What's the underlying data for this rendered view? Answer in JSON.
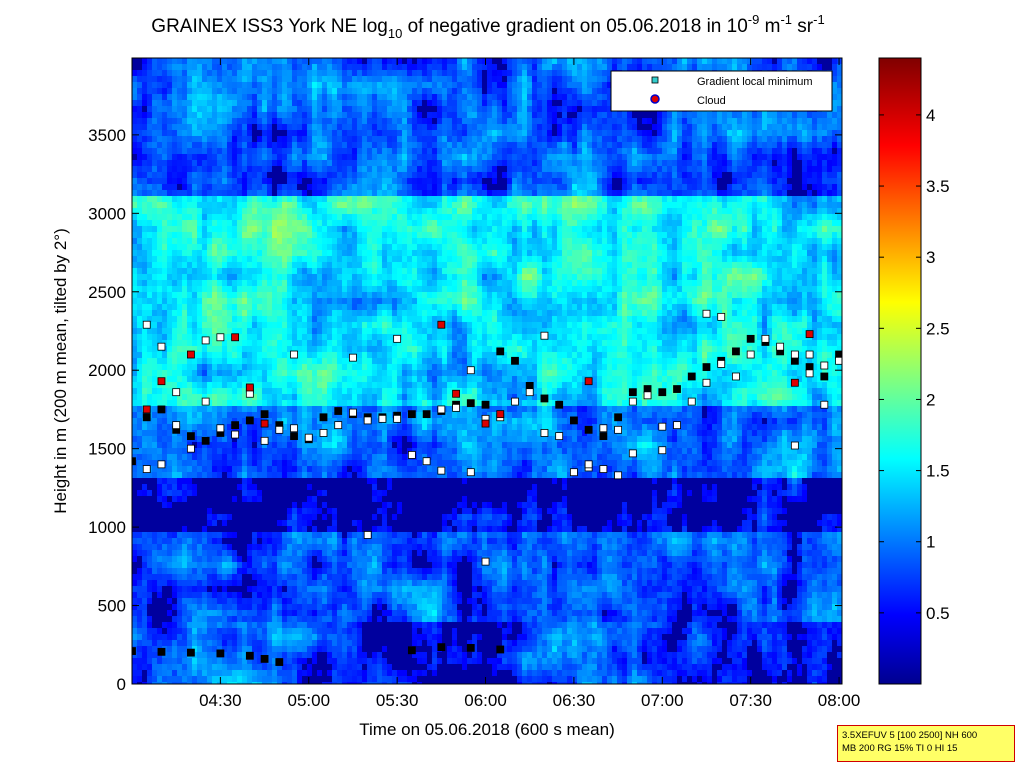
{
  "chart_data": {
    "type": "heatmap",
    "title": {
      "prefix": "GRAINEX ISS3 York NE log",
      "sub": "10",
      "middle": " of negative gradient on 05.06.2018 in 10",
      "sup1": "-9",
      "after_sup1": " m",
      "sup2": "-1",
      "after_sup2": " sr",
      "sup3": "-1"
    },
    "xlabel": "Time on 05.06.2018 (600 s mean)",
    "ylabel": "Height in m (200 m mean, tilted by 2°)",
    "x_range": [
      "04:00",
      "08:01"
    ],
    "ylim": [
      0,
      3990
    ],
    "x_ticks": [
      "04:30",
      "05:00",
      "05:30",
      "06:00",
      "06:30",
      "07:00",
      "07:30",
      "08:00"
    ],
    "y_ticks": [
      0,
      500,
      1000,
      1500,
      2000,
      2500,
      3000,
      3500
    ],
    "colorbar": {
      "range": [
        0,
        4.4
      ],
      "ticks": [
        0.5,
        1,
        1.5,
        2,
        2.5,
        3,
        3.5,
        4
      ],
      "colormap": "jet"
    },
    "legend": {
      "position": "top-right",
      "entries": [
        {
          "label": "Gradient local minimum",
          "color": "#33cccc",
          "marker": "square"
        },
        {
          "label": "Cloud",
          "color": "#dd0000",
          "marker": "circle",
          "edge": "#0000cc"
        }
      ]
    },
    "series": [
      {
        "marker": "square",
        "x": [
          "04:00",
          "04:05",
          "04:10",
          "04:15",
          "04:20",
          "04:25",
          "04:30",
          "04:35",
          "04:40",
          "04:45",
          "04:50",
          "04:55",
          "05:00",
          "05:05",
          "05:10",
          "05:15",
          "05:20",
          "05:25",
          "05:30",
          "05:35",
          "05:40",
          "05:45",
          "05:50",
          "05:55",
          "06:00",
          "06:05",
          "06:10",
          "06:15",
          "06:20",
          "06:25",
          "06:30",
          "06:35",
          "06:40",
          "06:45",
          "06:50",
          "06:55",
          "07:00",
          "07:05",
          "07:10",
          "07:15",
          "07:20",
          "07:25",
          "07:30",
          "07:35",
          "07:40",
          "07:45",
          "07:50",
          "07:55",
          "08:00"
        ],
        "y": [
          1420,
          1700,
          1750,
          1620,
          1580,
          1550,
          1600,
          1650,
          1680,
          1720,
          1650,
          1580,
          1560,
          1700,
          1740,
          1720,
          1700,
          1700,
          1710,
          1720,
          1720,
          1740,
          1780,
          1790,
          1780,
          2120,
          2060,
          1900,
          1820,
          1780,
          1680,
          1620,
          1580,
          1700,
          1860,
          1880,
          1860,
          1880,
          1960,
          2020,
          2060,
          2120,
          2200,
          2180,
          2120,
          2060,
          2020,
          1960,
          2100
        ]
      },
      {
        "marker": "square",
        "x": [
          "04:00",
          "04:10",
          "04:20",
          "04:30",
          "04:40",
          "04:45",
          "04:50",
          "05:35",
          "05:45",
          "05:55",
          "06:05"
        ],
        "y": [
          210,
          205,
          200,
          195,
          180,
          160,
          140,
          215,
          235,
          230,
          220
        ]
      },
      {
        "marker": "square",
        "x": [
          "04:05",
          "04:10",
          "04:15",
          "04:25",
          "04:30",
          "04:40",
          "04:55",
          "05:15",
          "05:20",
          "05:30",
          "05:45",
          "05:55",
          "06:00",
          "06:20",
          "06:35",
          "06:40",
          "06:45",
          "06:50",
          "07:00",
          "07:15",
          "07:20",
          "07:45",
          "07:50",
          "07:55"
        ],
        "y": [
          2290,
          2150,
          1860,
          2190,
          2210,
          1880,
          2100,
          2080,
          950,
          2200,
          1360,
          2000,
          780,
          2220,
          1380,
          1370,
          1330,
          1470,
          1490,
          2360,
          2340,
          1520,
          2100,
          2030
        ]
      },
      {
        "marker": "square",
        "x": [
          "04:05",
          "04:10",
          "04:15",
          "04:20",
          "04:25",
          "04:30",
          "04:35",
          "04:40",
          "04:45",
          "04:50",
          "04:55",
          "05:00",
          "05:05",
          "05:10",
          "05:15",
          "05:20",
          "05:25",
          "05:30",
          "05:35",
          "05:40",
          "05:45",
          "05:50",
          "05:55",
          "06:00",
          "06:05",
          "06:10",
          "06:15",
          "06:20",
          "06:25",
          "06:30",
          "06:35",
          "06:40",
          "06:45",
          "06:50",
          "06:55",
          "07:00",
          "07:05",
          "07:10",
          "07:15",
          "07:20",
          "07:25",
          "07:30",
          "07:35",
          "07:40",
          "07:45",
          "07:50",
          "07:55",
          "08:00"
        ],
        "y": [
          1370,
          1400,
          1650,
          1500,
          1800,
          1630,
          1590,
          1850,
          1550,
          1620,
          1630,
          1570,
          1600,
          1650,
          1730,
          1680,
          1690,
          1690,
          1460,
          1420,
          1750,
          1760,
          1350,
          1690,
          1700,
          1800,
          1860,
          1600,
          1580,
          1350,
          1400,
          1630,
          1620,
          1800,
          1840,
          1640,
          1650,
          1800,
          1920,
          2040,
          1960,
          2100,
          2200,
          2150,
          2100,
          1980,
          1780,
          2060
        ]
      },
      {
        "marker": "circle",
        "name": "Cloud",
        "x": [
          "04:05",
          "04:10",
          "04:20",
          "04:35",
          "04:40",
          "04:45",
          "05:45",
          "05:50",
          "06:00",
          "06:05",
          "06:35",
          "07:45",
          "07:50"
        ],
        "y": [
          1750,
          1930,
          2100,
          2210,
          1890,
          1660,
          2290,
          1850,
          1660,
          1720,
          1930,
          1920,
          2230
        ]
      }
    ]
  },
  "info_box": {
    "line1": "3.5XEFUV 5 [100 2500] NH 600",
    "line2": "MB 200 RG 15% TI 0 HI 15"
  }
}
